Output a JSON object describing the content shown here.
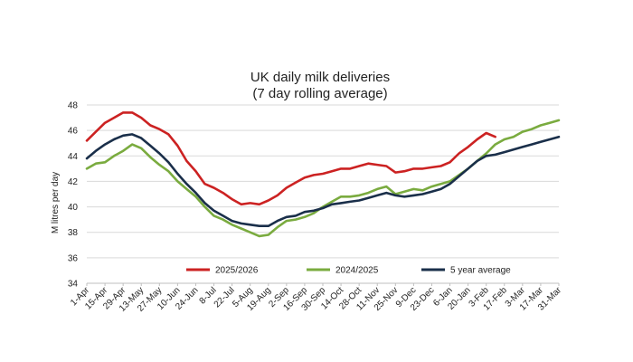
{
  "chart_data": {
    "type": "line",
    "title": [
      "UK daily milk deliveries",
      "(7 day rolling average)"
    ],
    "ylabel": "M litres per day",
    "xlabel": "",
    "ylim": [
      34,
      48
    ],
    "yticks": [
      34,
      36,
      38,
      40,
      42,
      44,
      46,
      48
    ],
    "grid": "horizontal",
    "legend": "bottom-inside",
    "x_days": [
      0,
      7,
      14,
      21,
      28,
      35,
      42,
      49,
      56,
      63,
      70,
      77,
      84,
      91,
      98,
      105,
      112,
      119,
      126,
      133,
      140,
      147,
      154,
      161,
      168,
      175,
      182,
      189,
      196,
      203,
      210,
      217,
      224,
      231,
      238,
      245,
      252,
      259,
      266,
      273,
      280,
      287,
      294,
      301,
      308,
      315,
      322,
      329,
      336,
      343,
      350,
      357,
      364
    ],
    "x_tick_labels": [
      "1-Apr",
      "15-Apr",
      "29-Apr",
      "13-May",
      "27-May",
      "10-Jun",
      "24-Jun",
      "8-Jul",
      "22-Jul",
      "5-Aug",
      "19-Aug",
      "2-Sep",
      "16-Sep",
      "30-Sep",
      "14-Oct",
      "28-Oct",
      "11-Nov",
      "25-Nov",
      "9-Dec",
      "23-Dec",
      "6-Jan",
      "20-Jan",
      "3-Feb",
      "17-Feb",
      "3-Mar",
      "17-Mar",
      "31-Mar"
    ],
    "series": [
      {
        "name": "2025/2026",
        "color": "#cc2222",
        "values": [
          45.2,
          45.9,
          46.6,
          47.0,
          47.4,
          47.4,
          47.0,
          46.4,
          46.1,
          45.7,
          44.8,
          43.6,
          42.8,
          41.8,
          41.5,
          41.1,
          40.6,
          40.2,
          40.3,
          40.2,
          40.5,
          40.9,
          41.5,
          41.9,
          42.3,
          42.5,
          42.6,
          42.8,
          43.0,
          43.0,
          43.2,
          43.4,
          43.3,
          43.2,
          42.7,
          42.8,
          43.0,
          43.0,
          43.1,
          43.2,
          43.5,
          44.2,
          44.7,
          45.3,
          45.8,
          45.5
        ]
      },
      {
        "name": "2024/2025",
        "color": "#7aab3f",
        "values": [
          43.0,
          43.4,
          43.5,
          44.0,
          44.4,
          44.9,
          44.6,
          43.9,
          43.3,
          42.8,
          42.0,
          41.4,
          40.8,
          40.0,
          39.3,
          39.0,
          38.6,
          38.3,
          38.0,
          37.7,
          37.8,
          38.4,
          38.9,
          39.0,
          39.2,
          39.5,
          40.0,
          40.4,
          40.8,
          40.8,
          40.9,
          41.1,
          41.4,
          41.6,
          41.0,
          41.2,
          41.4,
          41.3,
          41.6,
          41.8,
          42.0,
          42.5,
          43.0,
          43.6,
          44.2,
          44.9,
          45.3,
          45.5,
          45.9,
          46.1,
          46.4,
          46.6,
          46.8
        ]
      },
      {
        "name": "5 year average",
        "color": "#1a2f4a",
        "values": [
          43.8,
          44.4,
          44.9,
          45.3,
          45.6,
          45.7,
          45.4,
          44.8,
          44.2,
          43.5,
          42.6,
          41.8,
          41.1,
          40.3,
          39.7,
          39.3,
          38.9,
          38.7,
          38.6,
          38.5,
          38.5,
          38.9,
          39.2,
          39.3,
          39.6,
          39.7,
          39.9,
          40.2,
          40.3,
          40.4,
          40.5,
          40.7,
          40.9,
          41.1,
          40.9,
          40.8,
          40.9,
          41.0,
          41.2,
          41.4,
          41.8,
          42.4,
          43.0,
          43.6,
          44.0,
          44.1,
          44.3,
          44.5,
          44.7,
          44.9,
          45.1,
          45.3,
          45.5
        ]
      }
    ]
  }
}
